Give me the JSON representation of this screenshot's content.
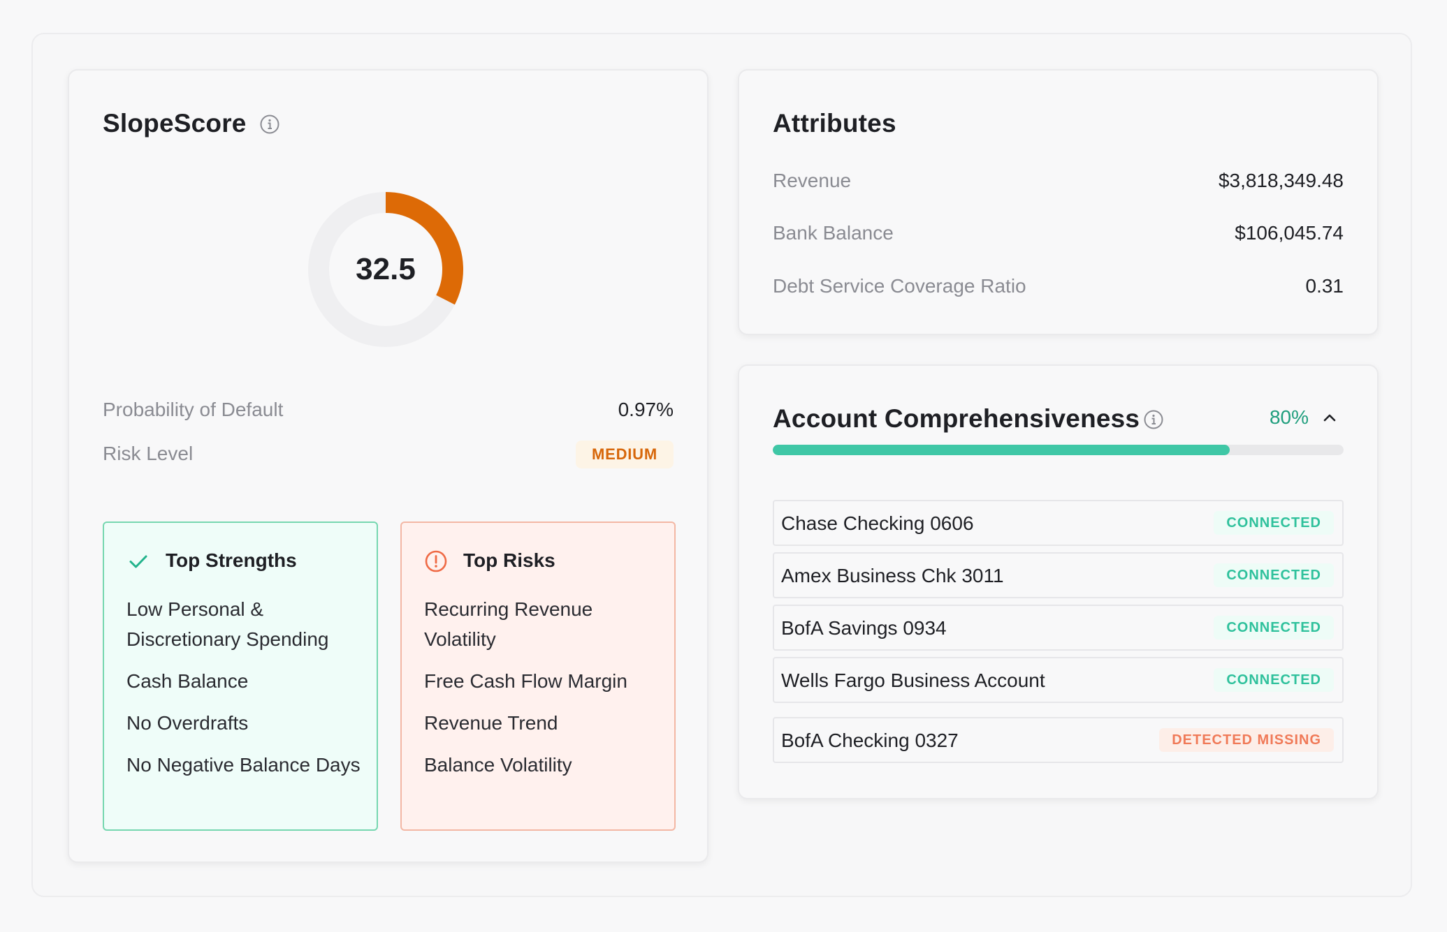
{
  "slope_score": {
    "title": "SlopeScore",
    "score_label": "32.5",
    "score_value": 32.5,
    "score_max": 100,
    "gauge_color": "#dd6a06",
    "probability_of_default": {
      "label": "Probability of Default",
      "value": "0.97%"
    },
    "risk_level": {
      "label": "Risk Level",
      "value": "MEDIUM"
    },
    "top_strengths": {
      "title": "Top Strengths",
      "items": [
        "Low Personal & Discretionary Spending",
        "Cash Balance",
        "No Overdrafts",
        "No Negative Balance Days"
      ]
    },
    "top_risks": {
      "title": "Top Risks",
      "items": [
        "Recurring Revenue Volatility",
        "Free Cash Flow Margin",
        "Revenue Trend",
        "Balance Volatility"
      ]
    }
  },
  "attributes": {
    "title": "Attributes",
    "rows": [
      {
        "label": "Revenue",
        "value": "$3,818,349.48"
      },
      {
        "label": "Bank Balance",
        "value": "$106,045.74"
      },
      {
        "label": "Debt Service Coverage Ratio",
        "value": "0.31"
      }
    ]
  },
  "comprehensiveness": {
    "title": "Account Comprehensiveness",
    "percent_label": "80%",
    "progress": 0.8,
    "accounts": [
      {
        "name": "Chase Checking 0606",
        "status": "CONNECTED"
      },
      {
        "name": "Amex Business Chk 3011",
        "status": "CONNECTED"
      },
      {
        "name": "BofA Savings 0934",
        "status": "CONNECTED"
      },
      {
        "name": "Wells Fargo Business Account",
        "status": "CONNECTED"
      },
      {
        "name": "BofA Checking 0327",
        "status": "DETECTED MISSING"
      }
    ]
  },
  "colors": {
    "accent_green": "#3fc7a6",
    "accent_orange": "#dd6a06",
    "missing_red": "#f07a58"
  },
  "icons": [
    "info-icon",
    "check-icon",
    "alert-circle-icon",
    "chevron-up-icon"
  ]
}
